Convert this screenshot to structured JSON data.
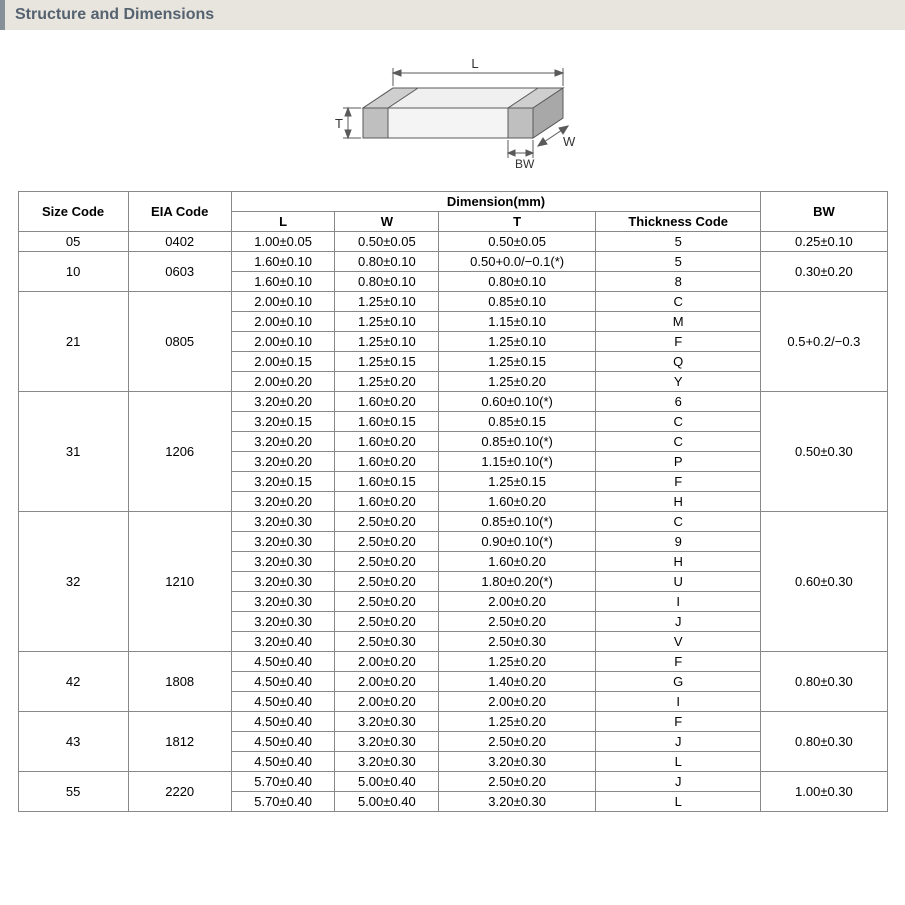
{
  "header_title": "Structure and Dimensions",
  "diagram": {
    "labels": {
      "L": "L",
      "W": "W",
      "T": "T",
      "BW": "BW"
    },
    "stroke": "#5a5a5a",
    "fill_top": "#f0f0f0",
    "fill_side": "#d8d8d8",
    "fill_band": "#bfbfbf",
    "fill_band_dark": "#a8a8a8"
  },
  "columns": {
    "size_code": "Size Code",
    "eia_code": "EIA Code",
    "dimension_group": "Dimension(mm)",
    "L": "L",
    "W": "W",
    "T": "T",
    "thickness_code": "Thickness Code",
    "BW": "BW"
  },
  "groups": [
    {
      "size_code": "05",
      "eia_code": "0402",
      "bw": "0.25±0.10",
      "rows": [
        {
          "L": "1.00±0.05",
          "W": "0.50±0.05",
          "T": "0.50±0.05",
          "TC": "5"
        }
      ]
    },
    {
      "size_code": "10",
      "eia_code": "0603",
      "bw": "0.30±0.20",
      "rows": [
        {
          "L": "1.60±0.10",
          "W": "0.80±0.10",
          "T": "0.50+0.0/−0.1(*)",
          "TC": "5"
        },
        {
          "L": "1.60±0.10",
          "W": "0.80±0.10",
          "T": "0.80±0.10",
          "TC": "8"
        }
      ]
    },
    {
      "size_code": "21",
      "eia_code": "0805",
      "bw": "0.5+0.2/−0.3",
      "rows": [
        {
          "L": "2.00±0.10",
          "W": "1.25±0.10",
          "T": "0.85±0.10",
          "TC": "C"
        },
        {
          "L": "2.00±0.10",
          "W": "1.25±0.10",
          "T": "1.15±0.10",
          "TC": "M"
        },
        {
          "L": "2.00±0.10",
          "W": "1.25±0.10",
          "T": "1.25±0.10",
          "TC": "F"
        },
        {
          "L": "2.00±0.15",
          "W": "1.25±0.15",
          "T": "1.25±0.15",
          "TC": "Q"
        },
        {
          "L": "2.00±0.20",
          "W": "1.25±0.20",
          "T": "1.25±0.20",
          "TC": "Y"
        }
      ]
    },
    {
      "size_code": "31",
      "eia_code": "1206",
      "bw": "0.50±0.30",
      "rows": [
        {
          "L": "3.20±0.20",
          "W": "1.60±0.20",
          "T": "0.60±0.10(*)",
          "TC": "6"
        },
        {
          "L": "3.20±0.15",
          "W": "1.60±0.15",
          "T": "0.85±0.15",
          "TC": "C"
        },
        {
          "L": "3.20±0.20",
          "W": "1.60±0.20",
          "T": "0.85±0.10(*)",
          "TC": "C"
        },
        {
          "L": "3.20±0.20",
          "W": "1.60±0.20",
          "T": "1.15±0.10(*)",
          "TC": "P"
        },
        {
          "L": "3.20±0.15",
          "W": "1.60±0.15",
          "T": "1.25±0.15",
          "TC": "F"
        },
        {
          "L": "3.20±0.20",
          "W": "1.60±0.20",
          "T": "1.60±0.20",
          "TC": "H"
        }
      ]
    },
    {
      "size_code": "32",
      "eia_code": "1210",
      "bw": "0.60±0.30",
      "rows": [
        {
          "L": "3.20±0.30",
          "W": "2.50±0.20",
          "T": "0.85±0.10(*)",
          "TC": "C"
        },
        {
          "L": "3.20±0.30",
          "W": "2.50±0.20",
          "T": "0.90±0.10(*)",
          "TC": "9"
        },
        {
          "L": "3.20±0.30",
          "W": "2.50±0.20",
          "T": "1.60±0.20",
          "TC": "H"
        },
        {
          "L": "3.20±0.30",
          "W": "2.50±0.20",
          "T": "1.80±0.20(*)",
          "TC": "U"
        },
        {
          "L": "3.20±0.30",
          "W": "2.50±0.20",
          "T": "2.00±0.20",
          "TC": "I"
        },
        {
          "L": "3.20±0.30",
          "W": "2.50±0.20",
          "T": "2.50±0.20",
          "TC": "J"
        },
        {
          "L": "3.20±0.40",
          "W": "2.50±0.30",
          "T": "2.50±0.30",
          "TC": "V"
        }
      ]
    },
    {
      "size_code": "42",
      "eia_code": "1808",
      "bw": "0.80±0.30",
      "rows": [
        {
          "L": "4.50±0.40",
          "W": "2.00±0.20",
          "T": "1.25±0.20",
          "TC": "F"
        },
        {
          "L": "4.50±0.40",
          "W": "2.00±0.20",
          "T": "1.40±0.20",
          "TC": "G"
        },
        {
          "L": "4.50±0.40",
          "W": "2.00±0.20",
          "T": "2.00±0.20",
          "TC": "I"
        }
      ]
    },
    {
      "size_code": "43",
      "eia_code": "1812",
      "bw": "0.80±0.30",
      "rows": [
        {
          "L": "4.50±0.40",
          "W": "3.20±0.30",
          "T": "1.25±0.20",
          "TC": "F"
        },
        {
          "L": "4.50±0.40",
          "W": "3.20±0.30",
          "T": "2.50±0.20",
          "TC": "J"
        },
        {
          "L": "4.50±0.40",
          "W": "3.20±0.30",
          "T": "3.20±0.30",
          "TC": "L"
        }
      ]
    },
    {
      "size_code": "55",
      "eia_code": "2220",
      "bw": "1.00±0.30",
      "rows": [
        {
          "L": "5.70±0.40",
          "W": "5.00±0.40",
          "T": "2.50±0.20",
          "TC": "J"
        },
        {
          "L": "5.70±0.40",
          "W": "5.00±0.40",
          "T": "3.20±0.30",
          "TC": "L"
        }
      ]
    }
  ],
  "colors": {
    "header_bg": "#e8e5de",
    "header_border": "#869098",
    "header_text": "#556270",
    "table_border": "#888888"
  }
}
